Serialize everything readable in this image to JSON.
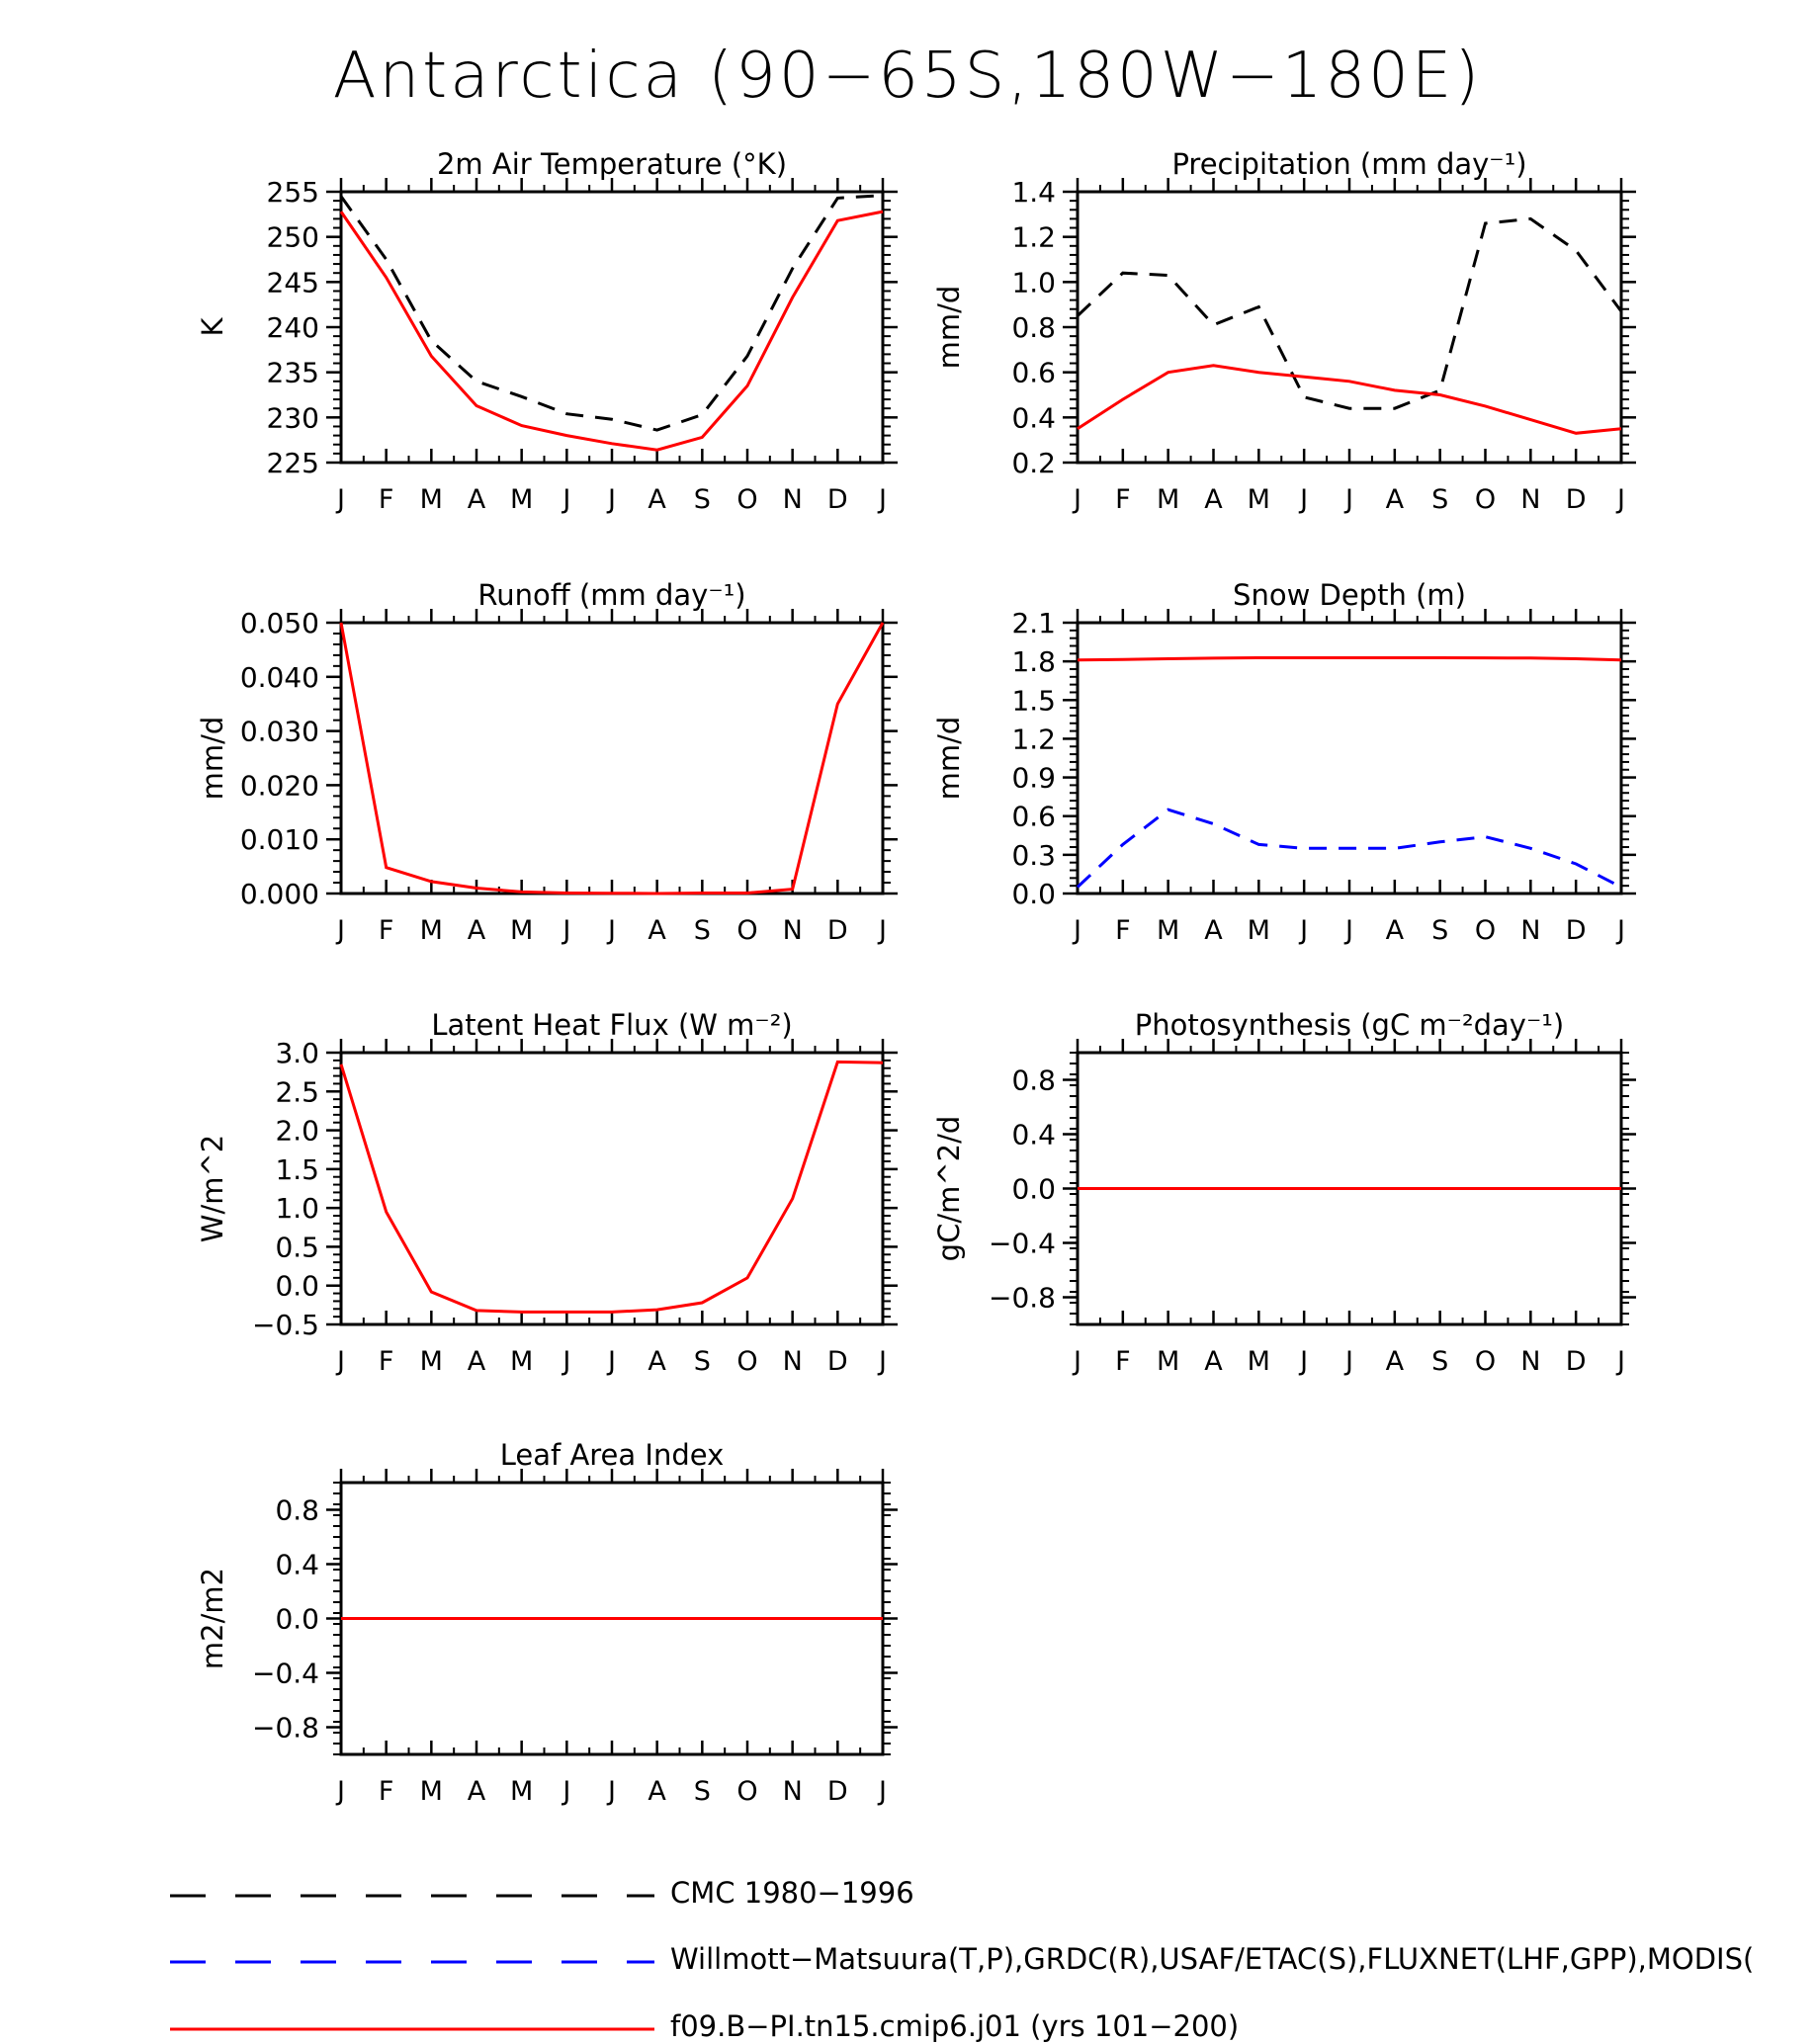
{
  "title": "Antarctica (90−65S,180W−180E)",
  "months": [
    "J",
    "F",
    "M",
    "A",
    "M",
    "J",
    "J",
    "A",
    "S",
    "O",
    "N",
    "D",
    "J"
  ],
  "colors": {
    "cmc": "#000000",
    "obs": "#0000ff",
    "model": "#ff0000"
  },
  "chart_data": [
    {
      "type": "line",
      "title": "2m Air Temperature (°K)",
      "ylabel": "K",
      "ylim": [
        225,
        255
      ],
      "yticks": [
        225,
        230,
        235,
        240,
        245,
        250,
        255
      ],
      "yticklabels": [
        "225",
        "230",
        "235",
        "240",
        "245",
        "250",
        "255"
      ],
      "series": [
        {
          "key": "cmc",
          "values": [
            254.5,
            247.5,
            238.5,
            234.0,
            232.3,
            230.4,
            229.8,
            228.6,
            230.3,
            236.8,
            246.5,
            254.3,
            254.6
          ]
        },
        {
          "key": "model",
          "values": [
            252.8,
            245.5,
            236.8,
            231.3,
            229.1,
            228.0,
            227.1,
            226.4,
            227.8,
            233.5,
            243.3,
            251.8,
            252.8
          ]
        }
      ]
    },
    {
      "type": "line",
      "title": "Precipitation (mm day⁻¹)",
      "ylabel": "mm/d",
      "ylim": [
        0.2,
        1.4
      ],
      "yticks": [
        0.2,
        0.4,
        0.6,
        0.8,
        1.0,
        1.2,
        1.4
      ],
      "yticklabels": [
        "0.2",
        "0.4",
        "0.6",
        "0.8",
        "1.0",
        "1.2",
        "1.4"
      ],
      "series": [
        {
          "key": "cmc",
          "values": [
            0.85,
            1.04,
            1.03,
            0.81,
            0.89,
            0.49,
            0.44,
            0.44,
            0.52,
            1.26,
            1.28,
            1.14,
            0.87
          ]
        },
        {
          "key": "model",
          "values": [
            0.35,
            0.48,
            0.6,
            0.63,
            0.6,
            0.58,
            0.56,
            0.52,
            0.5,
            0.45,
            0.39,
            0.33,
            0.35
          ]
        }
      ]
    },
    {
      "type": "line",
      "title": "Runoff (mm day⁻¹)",
      "ylabel": "mm/d",
      "ylim": [
        0.0,
        0.05
      ],
      "yticks": [
        0.0,
        0.01,
        0.02,
        0.03,
        0.04,
        0.05
      ],
      "yticklabels": [
        "0.000",
        "0.010",
        "0.020",
        "0.030",
        "0.040",
        "0.050"
      ],
      "series": [
        {
          "key": "model",
          "values": [
            0.05,
            0.0048,
            0.0022,
            0.001,
            0.0003,
            0.0001,
            5e-05,
            0.0,
            0.0001,
            0.0001,
            0.0008,
            0.035,
            0.05
          ]
        }
      ]
    },
    {
      "type": "line",
      "title": "Snow Depth (m)",
      "ylabel": "mm/d",
      "ylim": [
        0.0,
        2.1
      ],
      "yticks": [
        0.0,
        0.3,
        0.6,
        0.9,
        1.2,
        1.5,
        1.8,
        2.1
      ],
      "yticklabels": [
        "0.0",
        "0.3",
        "0.6",
        "0.9",
        "1.2",
        "1.5",
        "1.8",
        "2.1"
      ],
      "series": [
        {
          "key": "cmc",
          "values": [
            0.0,
            0.0,
            0.0,
            0.0,
            0.0,
            0.0,
            0.0,
            0.0,
            0.0,
            0.0,
            0.0,
            0.0,
            0.0
          ]
        },
        {
          "key": "obs",
          "values": [
            0.05,
            0.38,
            0.65,
            0.54,
            0.38,
            0.35,
            0.35,
            0.35,
            0.4,
            0.44,
            0.35,
            0.23,
            0.05
          ]
        },
        {
          "key": "model",
          "values": [
            1.81,
            1.815,
            1.82,
            1.825,
            1.828,
            1.828,
            1.828,
            1.828,
            1.828,
            1.827,
            1.826,
            1.82,
            1.81
          ]
        }
      ]
    },
    {
      "type": "line",
      "title": "Latent Heat Flux (W m⁻²)",
      "ylabel": "W/m^2",
      "ylim": [
        -0.5,
        3.0
      ],
      "yticks": [
        -0.5,
        0.0,
        0.5,
        1.0,
        1.5,
        2.0,
        2.5,
        3.0
      ],
      "yticklabels": [
        "−0.5",
        "0.0",
        "0.5",
        "1.0",
        "1.5",
        "2.0",
        "2.5",
        "3.0"
      ],
      "series": [
        {
          "key": "model",
          "values": [
            2.85,
            0.95,
            -0.08,
            -0.32,
            -0.34,
            -0.34,
            -0.34,
            -0.31,
            -0.22,
            0.1,
            1.12,
            2.88,
            2.87
          ]
        }
      ]
    },
    {
      "type": "line",
      "title": "Photosynthesis (gC m⁻²day⁻¹)",
      "ylabel": "gC/m^2/d",
      "ylim": [
        -1.0,
        1.0
      ],
      "yticks": [
        -0.8,
        -0.4,
        0.0,
        0.4,
        0.8
      ],
      "yticklabels": [
        "−0.8",
        "−0.4",
        "0.0",
        "0.4",
        "0.8"
      ],
      "series": [
        {
          "key": "model",
          "values": [
            0,
            0,
            0,
            0,
            0,
            0,
            0,
            0,
            0,
            0,
            0,
            0,
            0
          ]
        }
      ]
    },
    {
      "type": "line",
      "title": "Leaf Area Index",
      "ylabel": "m2/m2",
      "ylim": [
        -1.0,
        1.0
      ],
      "yticks": [
        -0.8,
        -0.4,
        0.0,
        0.4,
        0.8
      ],
      "yticklabels": [
        "−0.8",
        "−0.4",
        "0.0",
        "0.4",
        "0.8"
      ],
      "series": [
        {
          "key": "model",
          "values": [
            0,
            0,
            0,
            0,
            0,
            0,
            0,
            0,
            0,
            0,
            0,
            0,
            0
          ]
        }
      ]
    }
  ],
  "legend": [
    {
      "key": "cmc",
      "label": "CMC 1980−1996"
    },
    {
      "key": "obs",
      "label": "Willmott−Matsuura(T,P),GRDC(R),USAF/ETAC(S),FLUXNET(LHF,GPP),MODIS("
    },
    {
      "key": "model",
      "label": "f09.B−PI.tn15.cmip6.j01 (yrs 101−200)"
    }
  ]
}
